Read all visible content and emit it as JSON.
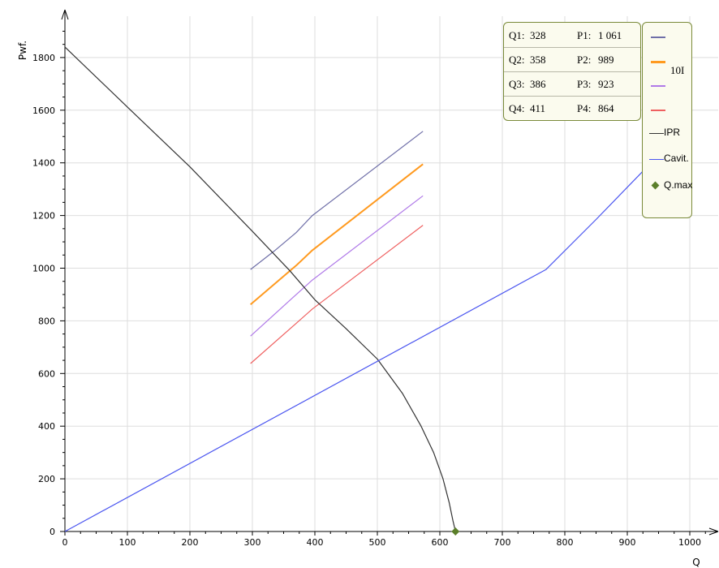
{
  "chart_data": {
    "type": "line",
    "xlabel": "Q",
    "ylabel": "Pwf.",
    "xlim": [
      0,
      1050
    ],
    "ylim": [
      0,
      1950
    ],
    "x_ticks": [
      0,
      100,
      200,
      300,
      400,
      500,
      600,
      700,
      800,
      900,
      1000
    ],
    "y_ticks": [
      0,
      200,
      400,
      600,
      800,
      1000,
      1200,
      1400,
      1600,
      1800
    ],
    "grid": true,
    "series": [
      {
        "color": "#6f6fa8",
        "width": 1.2,
        "points": [
          [
            297,
            995
          ],
          [
            335,
            1065
          ],
          [
            370,
            1135
          ],
          [
            396,
            1200
          ],
          [
            573,
            1520
          ]
        ]
      },
      {
        "color": "#ff9a1f",
        "width": 2,
        "points": [
          [
            297,
            862
          ],
          [
            370,
            1010
          ],
          [
            396,
            1068
          ],
          [
            573,
            1395
          ]
        ]
      },
      {
        "color": "#b07ae8",
        "width": 1.2,
        "points": [
          [
            297,
            742
          ],
          [
            360,
            878
          ],
          [
            396,
            955
          ],
          [
            573,
            1275
          ]
        ]
      },
      {
        "color": "#ef6060",
        "width": 1.2,
        "points": [
          [
            297,
            638
          ],
          [
            370,
            790
          ],
          [
            396,
            845
          ],
          [
            573,
            1163
          ]
        ]
      },
      {
        "name": "IPR",
        "color": "#333333",
        "width": 1.2,
        "points": [
          [
            0,
            1840
          ],
          [
            100,
            1612
          ],
          [
            200,
            1385
          ],
          [
            300,
            1140
          ],
          [
            360,
            990
          ],
          [
            400,
            880
          ],
          [
            450,
            770
          ],
          [
            500,
            655
          ],
          [
            540,
            525
          ],
          [
            570,
            400
          ],
          [
            590,
            300
          ],
          [
            605,
            200
          ],
          [
            615,
            110
          ],
          [
            621,
            40
          ],
          [
            625,
            0
          ]
        ]
      },
      {
        "name": "Cavit.",
        "color": "#4a55f0",
        "width": 1.2,
        "points": [
          [
            0,
            0
          ],
          [
            770,
            995
          ],
          [
            850,
            1185
          ],
          [
            940,
            1405
          ]
        ]
      }
    ],
    "markers": [
      {
        "name": "Q.max",
        "x": 625,
        "y": 0,
        "color": "#5b7f2a"
      }
    ],
    "info_table": {
      "rows": [
        {
          "q_label": "Q1:",
          "q_value": "328",
          "p_label": "P1:",
          "p_value": "1 061"
        },
        {
          "q_label": "Q2:",
          "q_value": "358",
          "p_label": "P2:",
          "p_value": "989"
        },
        {
          "q_label": "Q3:",
          "q_value": "386",
          "p_label": "P3:",
          "p_value": "923"
        },
        {
          "q_label": "Q4:",
          "q_value": "411",
          "p_label": "P4:",
          "p_value": "864"
        }
      ]
    },
    "legend": {
      "group_label": "10I",
      "ipr": "IPR",
      "cavit": "Cavit.",
      "qmax": "Q.max",
      "placement": "top-right"
    }
  }
}
